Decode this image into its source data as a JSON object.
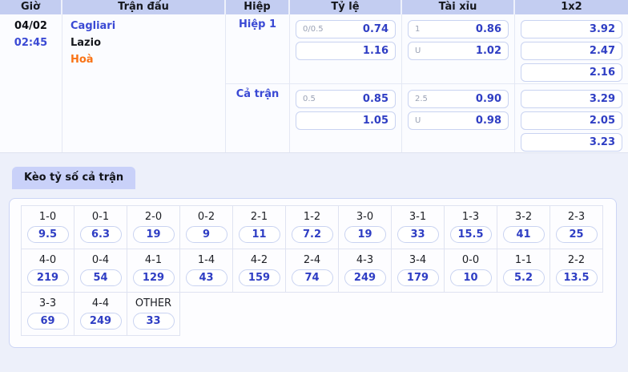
{
  "colors": {
    "accent_blue": "#3a49d4",
    "odds_value_blue": "#2f3ec4",
    "draw_orange": "#f97316",
    "header_bg": "#c3cdf1",
    "tab_bg": "#c9d1f9",
    "page_bg": "#edf0fa"
  },
  "odds_table": {
    "headers": [
      "Giờ",
      "Trận đấu",
      "Hiệp",
      "Tỷ lệ",
      "Tài xỉu",
      "1x2"
    ],
    "date": "04/02",
    "time": "02:45",
    "home_team": "Cagliari",
    "away_team": "Lazio",
    "draw_label": "Hoà",
    "sections": [
      {
        "label": "Hiệp 1",
        "handicap": [
          {
            "line": "0/0.5",
            "odds": "0.74"
          },
          {
            "line": "",
            "odds": "1.16"
          }
        ],
        "over_under": [
          {
            "line": "1",
            "odds": "0.86"
          },
          {
            "line": "U",
            "odds": "1.02"
          }
        ],
        "one_x_two": [
          "3.92",
          "2.47",
          "2.16"
        ]
      },
      {
        "label": "Cả trận",
        "handicap": [
          {
            "line": "0.5",
            "odds": "0.85"
          },
          {
            "line": "",
            "odds": "1.05"
          }
        ],
        "over_under": [
          {
            "line": "2.5",
            "odds": "0.90"
          },
          {
            "line": "U",
            "odds": "0.98"
          }
        ],
        "one_x_two": [
          "3.29",
          "2.05",
          "3.23"
        ]
      }
    ]
  },
  "score_section": {
    "tab_label": "Kèo tỷ số cả trận",
    "rows": [
      [
        {
          "score": "1-0",
          "odds": "9.5"
        },
        {
          "score": "0-1",
          "odds": "6.3"
        },
        {
          "score": "2-0",
          "odds": "19"
        },
        {
          "score": "0-2",
          "odds": "9"
        },
        {
          "score": "2-1",
          "odds": "11"
        },
        {
          "score": "1-2",
          "odds": "7.2"
        },
        {
          "score": "3-0",
          "odds": "19"
        },
        {
          "score": "3-1",
          "odds": "33"
        },
        {
          "score": "1-3",
          "odds": "15.5"
        },
        {
          "score": "3-2",
          "odds": "41"
        },
        {
          "score": "2-3",
          "odds": "25"
        }
      ],
      [
        {
          "score": "4-0",
          "odds": "219"
        },
        {
          "score": "0-4",
          "odds": "54"
        },
        {
          "score": "4-1",
          "odds": "129"
        },
        {
          "score": "1-4",
          "odds": "43"
        },
        {
          "score": "4-2",
          "odds": "159"
        },
        {
          "score": "2-4",
          "odds": "74"
        },
        {
          "score": "4-3",
          "odds": "249"
        },
        {
          "score": "3-4",
          "odds": "179"
        },
        {
          "score": "0-0",
          "odds": "10"
        },
        {
          "score": "1-1",
          "odds": "5.2"
        },
        {
          "score": "2-2",
          "odds": "13.5"
        }
      ],
      [
        {
          "score": "3-3",
          "odds": "69"
        },
        {
          "score": "4-4",
          "odds": "249"
        },
        {
          "score": "OTHER",
          "odds": "33"
        }
      ]
    ]
  }
}
